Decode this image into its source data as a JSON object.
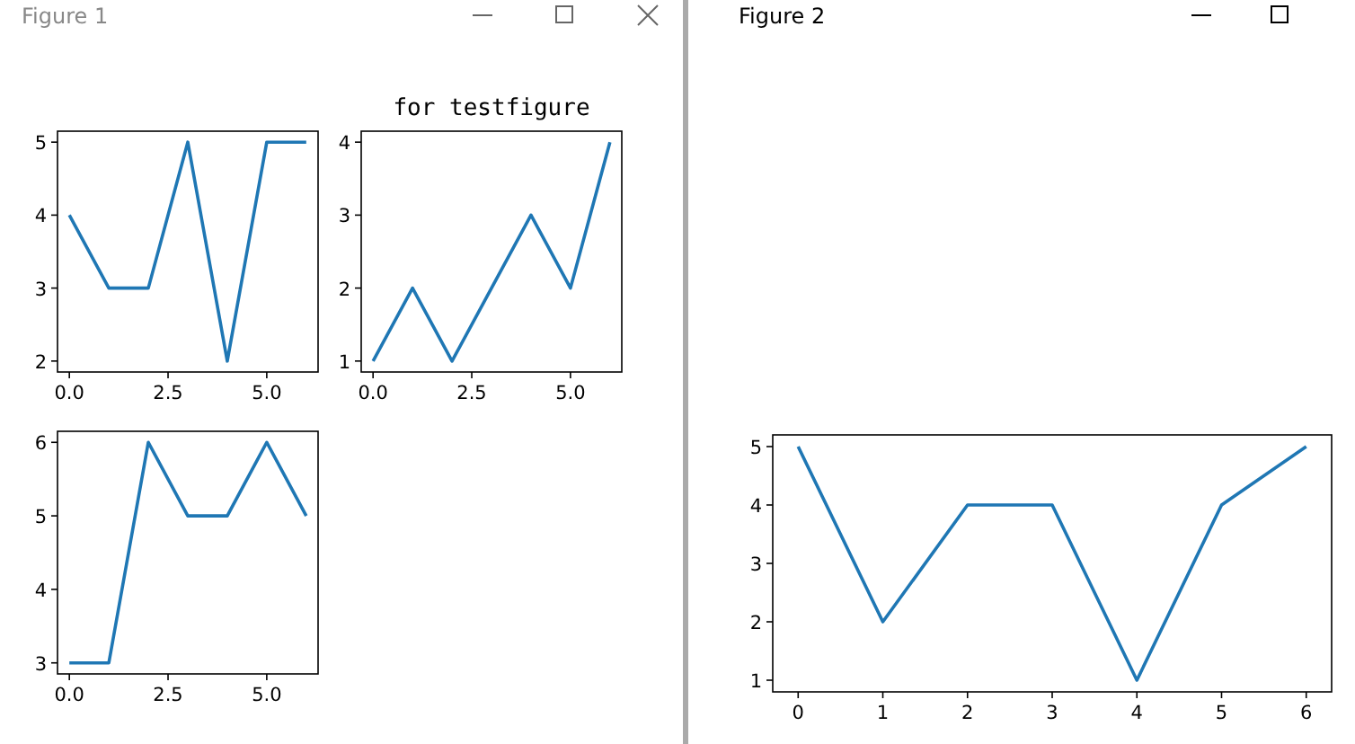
{
  "chart_data": [
    {
      "type": "line",
      "annotations": [
        "Figure 1"
      ],
      "x": [
        0,
        1,
        2,
        3,
        4,
        5,
        6
      ],
      "values": [
        4,
        3,
        3,
        5,
        2,
        5,
        5
      ],
      "color": "#1f77b4",
      "xlim": [
        -0.3,
        6.3
      ],
      "xticks": [
        {
          "value": 0,
          "label": "0.0"
        },
        {
          "value": 2.5,
          "label": "2.5"
        },
        {
          "value": 5,
          "label": "5.0"
        }
      ],
      "ylim": [
        1.85,
        5.15
      ],
      "yticks": [
        2,
        3,
        4,
        5
      ]
    },
    {
      "type": "line",
      "title": "for testfigure",
      "x": [
        0,
        1,
        2,
        3,
        4,
        5,
        6
      ],
      "values": [
        1,
        2,
        1,
        2,
        3,
        2,
        4
      ],
      "color": "#1f77b4",
      "xlim": [
        -0.3,
        6.3
      ],
      "xticks": [
        {
          "value": 0,
          "label": "0.0"
        },
        {
          "value": 2.5,
          "label": "2.5"
        },
        {
          "value": 5,
          "label": "5.0"
        }
      ],
      "ylim": [
        0.85,
        4.15
      ],
      "yticks": [
        1,
        2,
        3,
        4
      ]
    },
    {
      "type": "line",
      "x": [
        0,
        1,
        2,
        3,
        4,
        5,
        6
      ],
      "values": [
        3,
        3,
        6,
        5,
        5,
        6,
        5
      ],
      "color": "#1f77b4",
      "xlim": [
        -0.3,
        6.3
      ],
      "xticks": [
        {
          "value": 0,
          "label": "0.0"
        },
        {
          "value": 2.5,
          "label": "2.5"
        },
        {
          "value": 5,
          "label": "5.0"
        }
      ],
      "ylim": [
        2.85,
        6.15
      ],
      "yticks": [
        3,
        4,
        5,
        6
      ]
    },
    {
      "type": "line",
      "annotations": [
        "Figure 2"
      ],
      "x": [
        0,
        1,
        2,
        3,
        4,
        5,
        6
      ],
      "values": [
        5,
        2,
        4,
        4,
        1,
        4,
        5
      ],
      "color": "#1f77b4",
      "xlim": [
        -0.3,
        6.3
      ],
      "xticks": [
        0,
        1,
        2,
        3,
        4,
        5,
        6
      ],
      "ylim": [
        0.8,
        5.2
      ],
      "yticks": [
        1,
        2,
        3,
        4,
        5
      ]
    }
  ]
}
